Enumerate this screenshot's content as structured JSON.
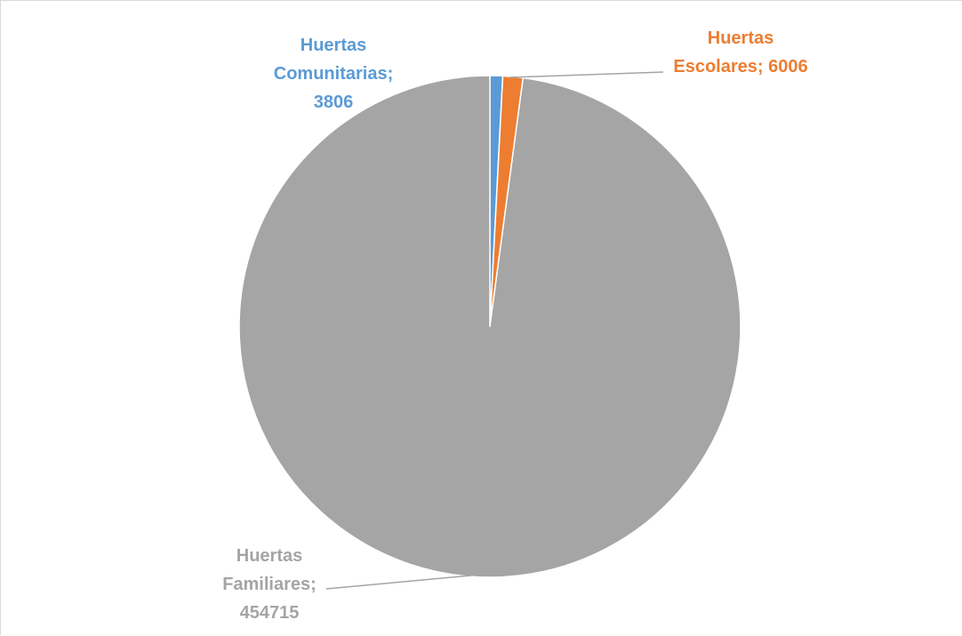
{
  "chart_data": {
    "type": "pie",
    "slices": [
      {
        "name": "Huertas Comunitarias",
        "value": 3806,
        "color": "#5b9bd5",
        "label_lines": [
          "Huertas",
          "Comunitarias;",
          "3806"
        ]
      },
      {
        "name": "Huertas Escolares",
        "value": 6006,
        "color": "#ed7d31",
        "label_lines": [
          "Huertas",
          "Escolares; 6006"
        ]
      },
      {
        "name": "Huertas Familiares",
        "value": 454715,
        "color": "#a5a5a5",
        "label_lines": [
          "Huertas",
          "Familiares;",
          "454715"
        ]
      }
    ],
    "start_angle": "top",
    "direction": "clockwise",
    "legend": "none"
  }
}
